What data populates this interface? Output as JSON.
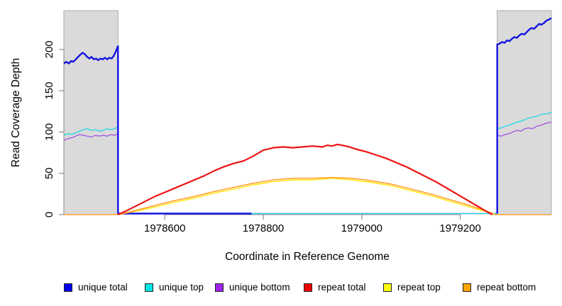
{
  "chart_data": {
    "type": "line",
    "title": "",
    "xlabel": "Coordinate in Reference Genome",
    "ylabel": "Read Coverage Depth",
    "xlim": [
      1978395,
      1979385
    ],
    "ylim": [
      0,
      247
    ],
    "xticks": [
      1978600,
      1978800,
      1979000,
      1979200
    ],
    "yticks": [
      0,
      50,
      100,
      150,
      200
    ],
    "grid": false,
    "legend_position": "bottom",
    "shaded_regions": [
      {
        "from": 1978395,
        "to": 1978505
      },
      {
        "from": 1979275,
        "to": 1979385
      }
    ],
    "series": [
      {
        "name": "unique total",
        "color": "#1414E0",
        "width": 2.4,
        "segments": [
          [
            [
              1978395,
              183
            ],
            [
              1978400,
              185
            ],
            [
              1978405,
              183
            ],
            [
              1978410,
              186
            ],
            [
              1978414,
              185
            ],
            [
              1978419,
              188
            ],
            [
              1978424,
              191
            ],
            [
              1978429,
              194
            ],
            [
              1978433,
              196
            ],
            [
              1978438,
              194
            ],
            [
              1978442,
              191
            ],
            [
              1978447,
              189
            ],
            [
              1978451,
              191
            ],
            [
              1978456,
              188
            ],
            [
              1978460,
              189
            ],
            [
              1978465,
              187
            ],
            [
              1978469,
              189
            ],
            [
              1978474,
              188
            ],
            [
              1978478,
              190
            ],
            [
              1978483,
              188
            ],
            [
              1978487,
              190
            ],
            [
              1978492,
              189
            ],
            [
              1978496,
              192
            ],
            [
              1978500,
              197
            ],
            [
              1978503,
              201
            ],
            [
              1978505,
              204
            ],
            [
              1978505,
              1.3
            ],
            [
              1978776,
              1.3
            ]
          ],
          [
            [
              1979275,
              1.3
            ],
            [
              1979275,
              206
            ],
            [
              1979280,
              207
            ],
            [
              1979285,
              209
            ],
            [
              1979290,
              208
            ],
            [
              1979295,
              211
            ],
            [
              1979300,
              210
            ],
            [
              1979305,
              213
            ],
            [
              1979310,
              215
            ],
            [
              1979315,
              214
            ],
            [
              1979320,
              217
            ],
            [
              1979325,
              219
            ],
            [
              1979330,
              218
            ],
            [
              1979335,
              221
            ],
            [
              1979340,
              224
            ],
            [
              1979345,
              226
            ],
            [
              1979350,
              225
            ],
            [
              1979355,
              228
            ],
            [
              1979360,
              231
            ],
            [
              1979365,
              230
            ],
            [
              1979370,
              232
            ],
            [
              1979375,
              235
            ],
            [
              1979380,
              236
            ],
            [
              1979385,
              238
            ]
          ]
        ]
      },
      {
        "name": "unique top",
        "color": "#2BD8E6",
        "width": 1.4,
        "segments": [
          [
            [
              1978395,
              96
            ],
            [
              1978403,
              98
            ],
            [
              1978411,
              97
            ],
            [
              1978419,
              99
            ],
            [
              1978427,
              101
            ],
            [
              1978435,
              103
            ],
            [
              1978443,
              104
            ],
            [
              1978451,
              102
            ],
            [
              1978459,
              103
            ],
            [
              1978467,
              101
            ],
            [
              1978475,
              102
            ],
            [
              1978483,
              104
            ],
            [
              1978491,
              103
            ],
            [
              1978498,
              104
            ],
            [
              1978505,
              106
            ],
            [
              1978505,
              1.3
            ],
            [
              1979275,
              1.3
            ],
            [
              1979275,
              104
            ],
            [
              1979283,
              105
            ],
            [
              1979291,
              107
            ],
            [
              1979299,
              108
            ],
            [
              1979307,
              110
            ],
            [
              1979315,
              112
            ],
            [
              1979323,
              113
            ],
            [
              1979331,
              115
            ],
            [
              1979339,
              117
            ],
            [
              1979347,
              118
            ],
            [
              1979355,
              119
            ],
            [
              1979363,
              121
            ],
            [
              1979371,
              122
            ],
            [
              1979378,
              122
            ],
            [
              1979385,
              124
            ]
          ]
        ]
      },
      {
        "name": "unique bottom",
        "color": "#A45CE0",
        "width": 1.4,
        "segments": [
          [
            [
              1978395,
              90
            ],
            [
              1978403,
              92
            ],
            [
              1978411,
              93
            ],
            [
              1978419,
              95
            ],
            [
              1978427,
              97
            ],
            [
              1978435,
              96
            ],
            [
              1978443,
              95
            ],
            [
              1978451,
              94
            ],
            [
              1978459,
              96
            ],
            [
              1978467,
              95
            ],
            [
              1978475,
              96
            ],
            [
              1978483,
              95
            ],
            [
              1978491,
              97
            ],
            [
              1978498,
              96
            ],
            [
              1978505,
              98
            ],
            [
              1978505,
              1.3
            ],
            [
              1979275,
              1.3
            ],
            [
              1979275,
              96
            ],
            [
              1979283,
              95
            ],
            [
              1979291,
              97
            ],
            [
              1979299,
              98
            ],
            [
              1979307,
              100
            ],
            [
              1979315,
              102
            ],
            [
              1979323,
              101
            ],
            [
              1979331,
              104
            ],
            [
              1979339,
              105
            ],
            [
              1979347,
              104
            ],
            [
              1979355,
              107
            ],
            [
              1979363,
              108
            ],
            [
              1979371,
              110
            ],
            [
              1979378,
              111
            ],
            [
              1979385,
              112
            ]
          ]
        ]
      },
      {
        "name": "repeat total",
        "color": "#EE1414",
        "width": 2.2,
        "segments": [
          [
            [
              1978505,
              0
            ],
            [
              1978520,
              4
            ],
            [
              1978540,
              10
            ],
            [
              1978560,
              16
            ],
            [
              1978580,
              22
            ],
            [
              1978600,
              27
            ],
            [
              1978620,
              32
            ],
            [
              1978640,
              37
            ],
            [
              1978660,
              42
            ],
            [
              1978680,
              47
            ],
            [
              1978700,
              53
            ],
            [
              1978720,
              58
            ],
            [
              1978740,
              62
            ],
            [
              1978760,
              65
            ],
            [
              1978780,
              71
            ],
            [
              1978800,
              78
            ],
            [
              1978820,
              81
            ],
            [
              1978840,
              82
            ],
            [
              1978860,
              81
            ],
            [
              1978880,
              82
            ],
            [
              1978900,
              83
            ],
            [
              1978920,
              82
            ],
            [
              1978930,
              84
            ],
            [
              1978940,
              83
            ],
            [
              1978950,
              85
            ],
            [
              1978960,
              84
            ],
            [
              1978975,
              82
            ],
            [
              1978990,
              79
            ],
            [
              1979010,
              76
            ],
            [
              1979030,
              72
            ],
            [
              1979050,
              68
            ],
            [
              1979070,
              63
            ],
            [
              1979090,
              58
            ],
            [
              1979110,
              52
            ],
            [
              1979130,
              46
            ],
            [
              1979150,
              40
            ],
            [
              1979170,
              33
            ],
            [
              1979190,
              26
            ],
            [
              1979210,
              19
            ],
            [
              1979230,
              12
            ],
            [
              1979250,
              5
            ],
            [
              1979265,
              0
            ]
          ]
        ]
      },
      {
        "name": "repeat top",
        "color": "#FFE600",
        "width": 1.4,
        "segments": [
          [
            [
              1978505,
              0
            ],
            [
              1978540,
              4
            ],
            [
              1978580,
              9
            ],
            [
              1978620,
              15
            ],
            [
              1978660,
              20
            ],
            [
              1978700,
              26
            ],
            [
              1978740,
              31
            ],
            [
              1978780,
              36
            ],
            [
              1978820,
              40
            ],
            [
              1978860,
              42
            ],
            [
              1978900,
              42
            ],
            [
              1978940,
              44
            ],
            [
              1978980,
              42
            ],
            [
              1979020,
              39
            ],
            [
              1979060,
              35
            ],
            [
              1979100,
              29
            ],
            [
              1979140,
              23
            ],
            [
              1979180,
              16
            ],
            [
              1979220,
              9
            ],
            [
              1979250,
              4
            ],
            [
              1979270,
              0
            ]
          ]
        ]
      },
      {
        "name": "repeat bottom",
        "color": "#FFA030",
        "width": 1.6,
        "segments": [
          [
            [
              1978395,
              0
            ],
            [
              1978450,
              0
            ],
            [
              1978505,
              0
            ],
            [
              1978540,
              5
            ],
            [
              1978580,
              11
            ],
            [
              1978620,
              17
            ],
            [
              1978660,
              22
            ],
            [
              1978700,
              28
            ],
            [
              1978740,
              33
            ],
            [
              1978780,
              38
            ],
            [
              1978820,
              42
            ],
            [
              1978860,
              44
            ],
            [
              1978900,
              44
            ],
            [
              1978940,
              45
            ],
            [
              1978980,
              44
            ],
            [
              1979020,
              41
            ],
            [
              1979060,
              37
            ],
            [
              1979100,
              31
            ],
            [
              1979140,
              25
            ],
            [
              1979180,
              18
            ],
            [
              1979220,
              11
            ],
            [
              1979250,
              5
            ],
            [
              1979272,
              0
            ],
            [
              1979330,
              0
            ],
            [
              1979385,
              0
            ]
          ]
        ]
      }
    ]
  },
  "colors": {
    "background": "#FFFFFF",
    "shaded_region": "#DADADA",
    "shaded_border": "#ABABAB",
    "axis": "#8A8A8A",
    "text": "#000000",
    "legend_swatch_border": "#222222"
  },
  "legend_swatch_colors": {
    "unique total": "#0000EE",
    "unique top": "#00E5E5",
    "unique bottom": "#A020F0",
    "repeat total": "#EE0000",
    "repeat top": "#FFFF00",
    "repeat bottom": "#FFA500"
  }
}
